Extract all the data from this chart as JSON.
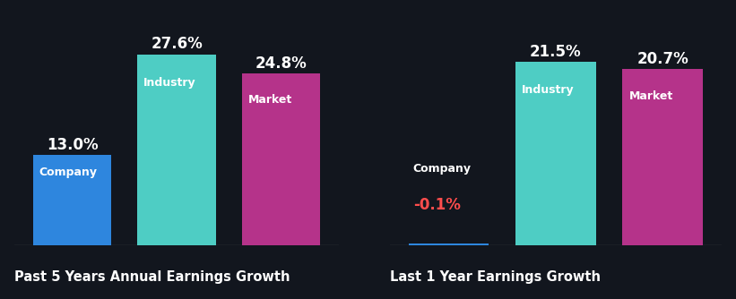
{
  "background_color": "#12161e",
  "chart1": {
    "title": "Past 5 Years Annual Earnings Growth",
    "bars": [
      {
        "label": "Company",
        "value": 13.0,
        "color": "#2e86de"
      },
      {
        "label": "Industry",
        "value": 27.6,
        "color": "#4ecdc4"
      },
      {
        "label": "Market",
        "value": 24.8,
        "color": "#b5338a"
      }
    ]
  },
  "chart2": {
    "title": "Last 1 Year Earnings Growth",
    "bars": [
      {
        "label": "Company",
        "value": -0.1,
        "color": "#2e86de"
      },
      {
        "label": "Industry",
        "value": 21.5,
        "color": "#4ecdc4"
      },
      {
        "label": "Market",
        "value": 20.7,
        "color": "#b5338a"
      }
    ]
  },
  "value_color": "#ffffff",
  "negative_value_color": "#ff4d4d",
  "label_color": "#ffffff",
  "title_color": "#ffffff",
  "title_fontsize": 10.5,
  "value_fontsize": 12,
  "label_fontsize": 9,
  "bar_width": 0.75,
  "ylim1": [
    0,
    32
  ],
  "ylim2": [
    0,
    26
  ]
}
